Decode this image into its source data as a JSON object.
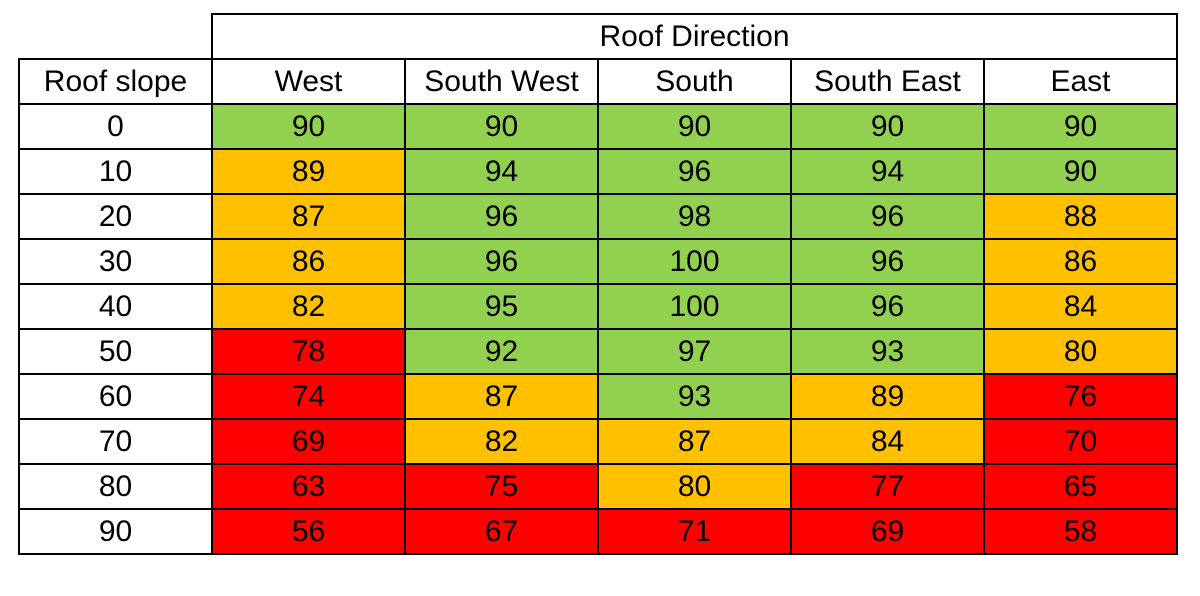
{
  "chart_data": {
    "type": "heatmap",
    "column_group_label": "Roof Direction",
    "row_header_label": "Roof slope",
    "columns": [
      "West",
      "South West",
      "South",
      "South East",
      "East"
    ],
    "rows": [
      "0",
      "10",
      "20",
      "30",
      "40",
      "50",
      "60",
      "70",
      "80",
      "90"
    ],
    "values": [
      [
        90,
        90,
        90,
        90,
        90
      ],
      [
        89,
        94,
        96,
        94,
        90
      ],
      [
        87,
        96,
        98,
        96,
        88
      ],
      [
        86,
        96,
        100,
        96,
        86
      ],
      [
        82,
        95,
        100,
        96,
        84
      ],
      [
        78,
        92,
        97,
        93,
        80
      ],
      [
        74,
        87,
        93,
        89,
        76
      ],
      [
        69,
        82,
        87,
        84,
        70
      ],
      [
        63,
        75,
        80,
        77,
        65
      ],
      [
        56,
        67,
        71,
        69,
        58
      ]
    ],
    "cell_colors": [
      [
        "green",
        "green",
        "green",
        "green",
        "green"
      ],
      [
        "amber",
        "green",
        "green",
        "green",
        "green"
      ],
      [
        "amber",
        "green",
        "green",
        "green",
        "amber"
      ],
      [
        "amber",
        "green",
        "green",
        "green",
        "amber"
      ],
      [
        "amber",
        "green",
        "green",
        "green",
        "amber"
      ],
      [
        "red",
        "green",
        "green",
        "green",
        "amber"
      ],
      [
        "red",
        "amber",
        "green",
        "amber",
        "red"
      ],
      [
        "red",
        "amber",
        "amber",
        "amber",
        "red"
      ],
      [
        "red",
        "red",
        "amber",
        "red",
        "red"
      ],
      [
        "red",
        "red",
        "red",
        "red",
        "red"
      ]
    ],
    "palette": {
      "green": "#92d050",
      "amber": "#ffc000",
      "red": "#ff0000"
    }
  }
}
